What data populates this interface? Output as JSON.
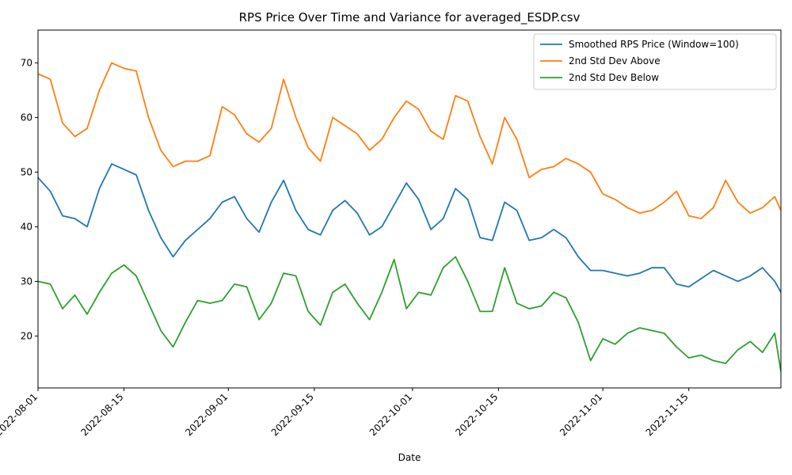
{
  "chart_data": {
    "type": "line",
    "title": "RPS Price Over Time and Variance for averaged_ESDP.csv",
    "xlabel": "Date",
    "ylabel": "",
    "xlim": [
      "2022-08-01",
      "2022-11-30"
    ],
    "ylim": [
      10.5,
      76
    ],
    "grid": false,
    "legend_position": "upper right",
    "x_ticks": [
      "2022-08-01",
      "2022-08-15",
      "2022-09-01",
      "2022-09-15",
      "2022-10-01",
      "2022-10-15",
      "2022-11-01",
      "2022-11-15"
    ],
    "y_ticks": [
      20,
      30,
      40,
      50,
      60,
      70
    ],
    "x": [
      "2022-08-01",
      "2022-08-03",
      "2022-08-05",
      "2022-08-07",
      "2022-08-09",
      "2022-08-11",
      "2022-08-13",
      "2022-08-15",
      "2022-08-17",
      "2022-08-19",
      "2022-08-21",
      "2022-08-23",
      "2022-08-25",
      "2022-08-27",
      "2022-08-29",
      "2022-08-31",
      "2022-09-02",
      "2022-09-04",
      "2022-09-06",
      "2022-09-08",
      "2022-09-10",
      "2022-09-12",
      "2022-09-14",
      "2022-09-16",
      "2022-09-18",
      "2022-09-20",
      "2022-09-22",
      "2022-09-24",
      "2022-09-26",
      "2022-09-28",
      "2022-09-30",
      "2022-10-02",
      "2022-10-04",
      "2022-10-06",
      "2022-10-08",
      "2022-10-10",
      "2022-10-12",
      "2022-10-14",
      "2022-10-16",
      "2022-10-18",
      "2022-10-20",
      "2022-10-22",
      "2022-10-24",
      "2022-10-26",
      "2022-10-28",
      "2022-10-30",
      "2022-11-01",
      "2022-11-03",
      "2022-11-05",
      "2022-11-07",
      "2022-11-09",
      "2022-11-11",
      "2022-11-13",
      "2022-11-15",
      "2022-11-17",
      "2022-11-19",
      "2022-11-21",
      "2022-11-23",
      "2022-11-25",
      "2022-11-27",
      "2022-11-29",
      "2022-11-30"
    ],
    "series": [
      {
        "name": "Smoothed RPS Price (Window=100)",
        "color": "#1f77b4",
        "values": [
          49.0,
          46.5,
          42.0,
          41.5,
          40.0,
          47.0,
          51.5,
          50.5,
          49.5,
          43.0,
          38.0,
          34.5,
          37.5,
          39.5,
          41.5,
          44.5,
          45.5,
          41.5,
          39.0,
          44.5,
          48.5,
          43.0,
          39.5,
          38.5,
          43.0,
          44.8,
          42.5,
          38.5,
          40.0,
          44.0,
          48.0,
          45.0,
          39.5,
          41.5,
          47.0,
          45.0,
          38.0,
          37.5,
          44.5,
          43.0,
          37.5,
          38.0,
          39.5,
          38.0,
          34.5,
          32.0,
          32.0,
          31.5,
          31.0,
          31.5,
          32.5,
          32.5,
          29.5,
          29.0,
          30.5,
          32.0,
          31.0,
          30.0,
          31.0,
          32.5,
          30.0,
          28.0
        ]
      },
      {
        "name": "2nd Std Dev Above",
        "color": "#ff7f0e",
        "values": [
          68.0,
          67.0,
          59.0,
          56.5,
          58.0,
          65.0,
          70.0,
          69.0,
          68.5,
          60.0,
          54.0,
          51.0,
          52.0,
          52.0,
          53.0,
          62.0,
          60.5,
          57.0,
          55.5,
          58.0,
          67.0,
          60.0,
          54.5,
          52.0,
          60.0,
          58.5,
          57.0,
          54.0,
          56.0,
          60.0,
          63.0,
          61.5,
          57.5,
          56.0,
          64.0,
          63.0,
          56.5,
          51.5,
          60.0,
          56.0,
          49.0,
          50.5,
          51.0,
          52.5,
          51.5,
          50.0,
          46.0,
          45.0,
          43.5,
          42.5,
          43.0,
          44.5,
          46.5,
          42.0,
          41.5,
          43.5,
          48.5,
          44.5,
          42.5,
          43.5,
          45.5,
          43.0
        ]
      },
      {
        "name": "2nd Std Dev Below",
        "color": "#2ca02c",
        "values": [
          30.0,
          29.5,
          25.0,
          27.5,
          24.0,
          28.0,
          31.5,
          33.0,
          31.0,
          26.0,
          21.0,
          18.0,
          22.5,
          26.5,
          26.0,
          26.5,
          29.5,
          29.0,
          23.0,
          26.0,
          31.5,
          31.0,
          24.5,
          22.0,
          28.0,
          29.5,
          26.0,
          23.0,
          28.0,
          34.0,
          25.0,
          28.0,
          27.5,
          32.5,
          34.5,
          30.0,
          24.5,
          24.5,
          32.5,
          26.0,
          25.0,
          25.5,
          28.0,
          27.0,
          22.5,
          15.5,
          19.5,
          18.5,
          20.5,
          21.5,
          21.0,
          20.5,
          18.0,
          16.0,
          16.5,
          15.5,
          15.0,
          17.5,
          19.0,
          17.0,
          20.5,
          13.5
        ]
      }
    ]
  }
}
